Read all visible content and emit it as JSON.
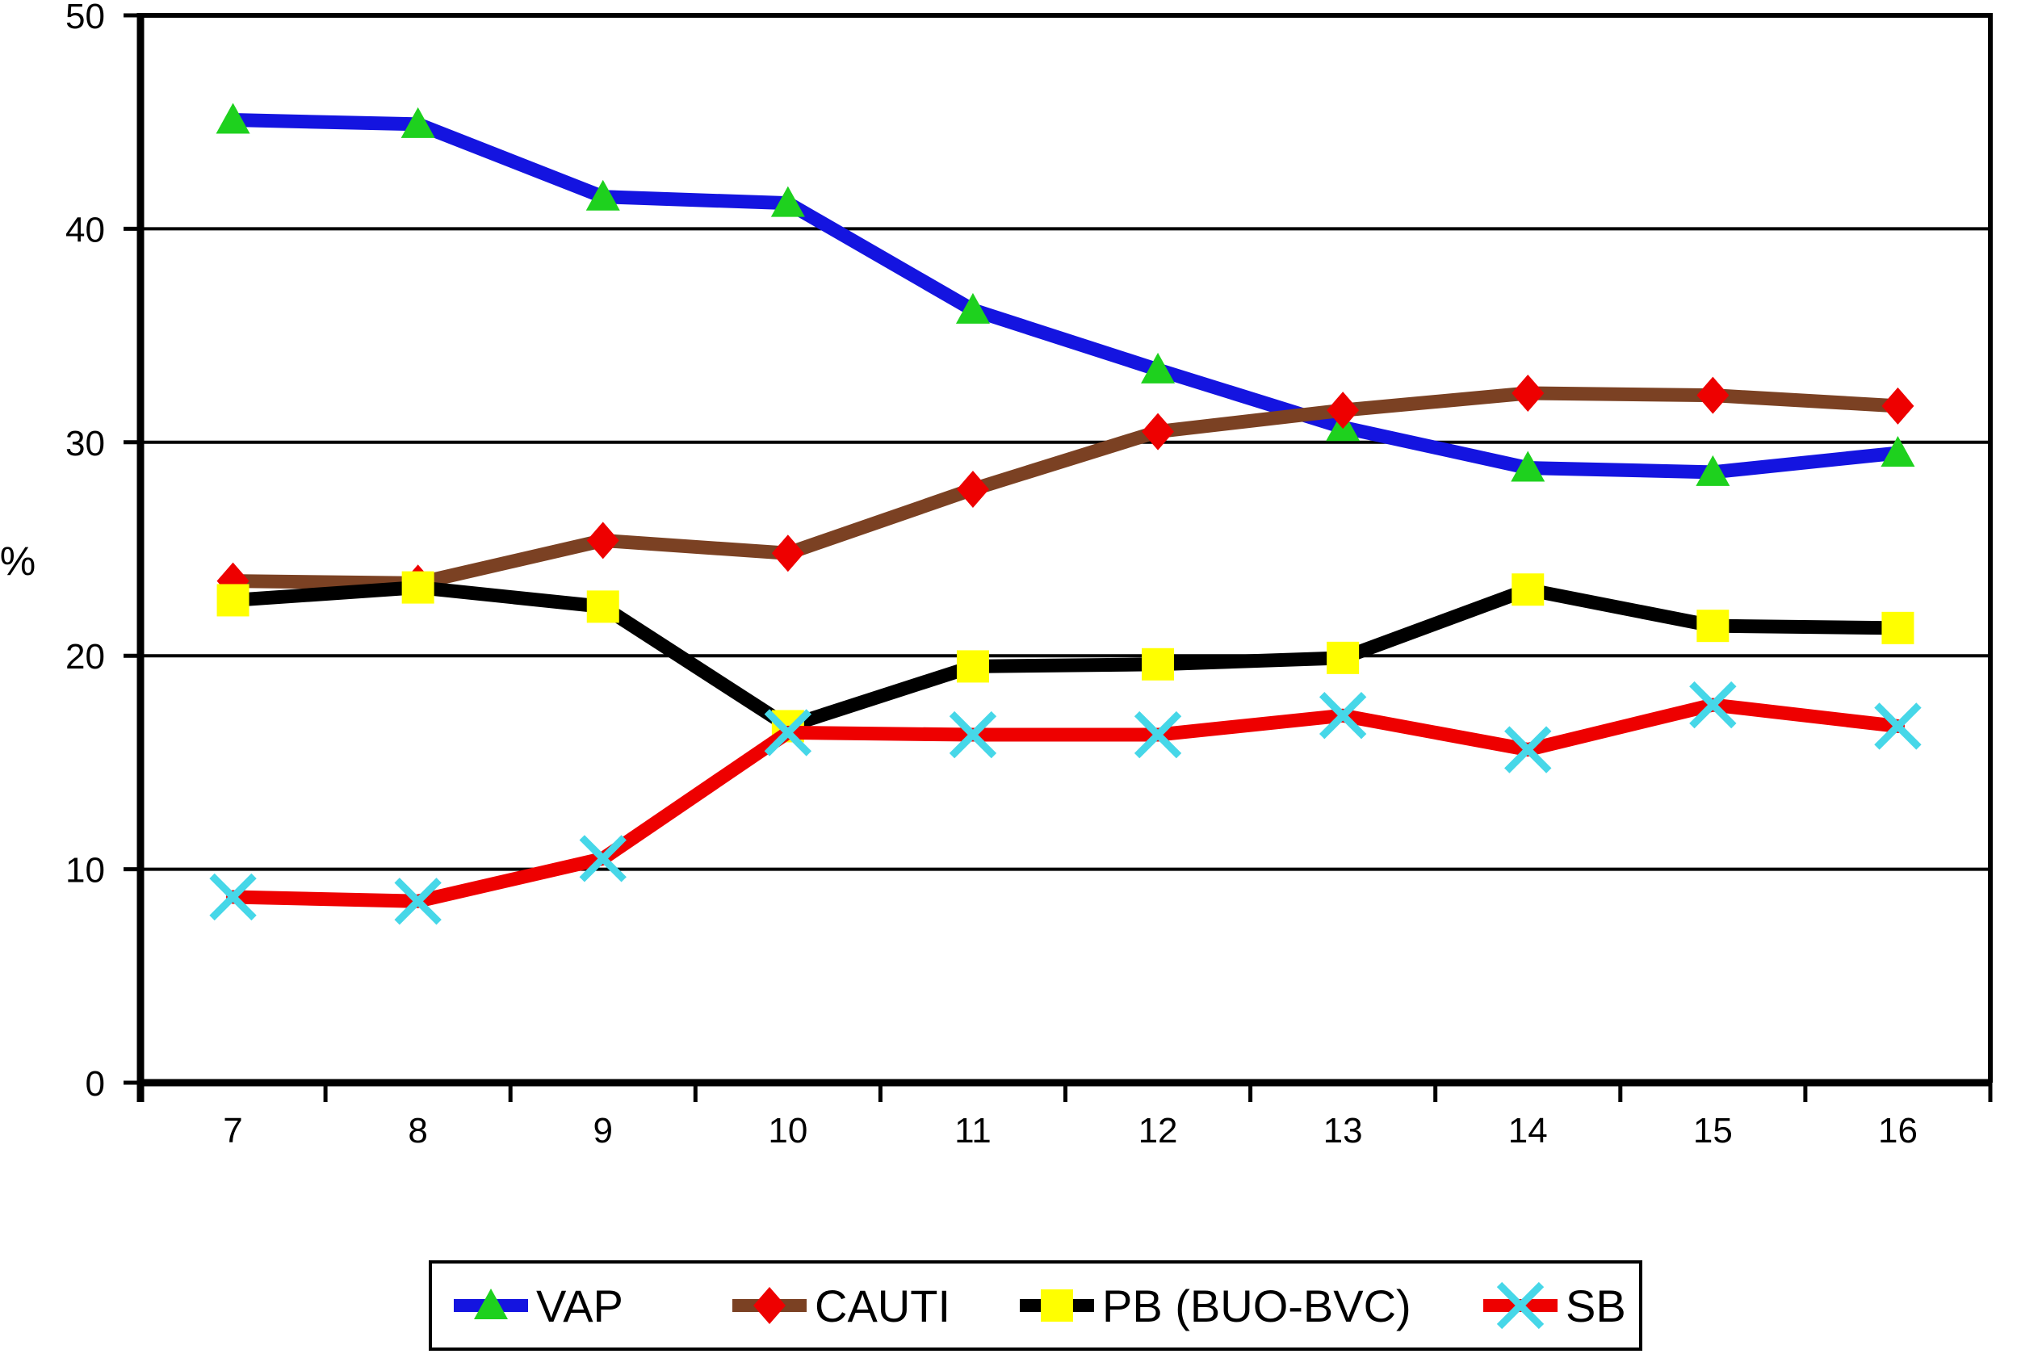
{
  "chart_data": {
    "type": "line",
    "title": "",
    "xlabel": "",
    "ylabel": "%",
    "x": [
      7,
      8,
      9,
      10,
      11,
      12,
      13,
      14,
      15,
      16
    ],
    "ylim": [
      0,
      50
    ],
    "yticks": [
      0,
      10,
      20,
      30,
      40,
      50
    ],
    "grid": "horizontal",
    "legend_position": "bottom",
    "series": [
      {
        "name": "VAP",
        "line_color": "#1414e0",
        "marker": "triangle",
        "marker_color": "#1ed11e",
        "values": [
          45.1,
          44.9,
          41.5,
          41.2,
          36.2,
          33.4,
          30.7,
          28.8,
          28.6,
          29.5
        ]
      },
      {
        "name": "CAUTI",
        "line_color": "#7b4123",
        "marker": "diamond",
        "marker_color": "#ee0000",
        "values": [
          23.5,
          23.4,
          25.4,
          24.8,
          27.8,
          30.5,
          31.5,
          32.3,
          32.2,
          31.7
        ]
      },
      {
        "name": "PB (BUO-BVC)",
        "line_color": "#000000",
        "marker": "square",
        "marker_color": "#ffff00",
        "values": [
          22.6,
          23.2,
          22.3,
          16.7,
          19.5,
          19.6,
          19.9,
          23.1,
          21.4,
          21.3
        ]
      },
      {
        "name": "SB",
        "line_color": "#ee0000",
        "marker": "x",
        "marker_color": "#46d7e8",
        "values": [
          8.7,
          8.5,
          10.5,
          16.4,
          16.3,
          16.3,
          17.2,
          15.6,
          17.7,
          16.7
        ]
      }
    ]
  }
}
